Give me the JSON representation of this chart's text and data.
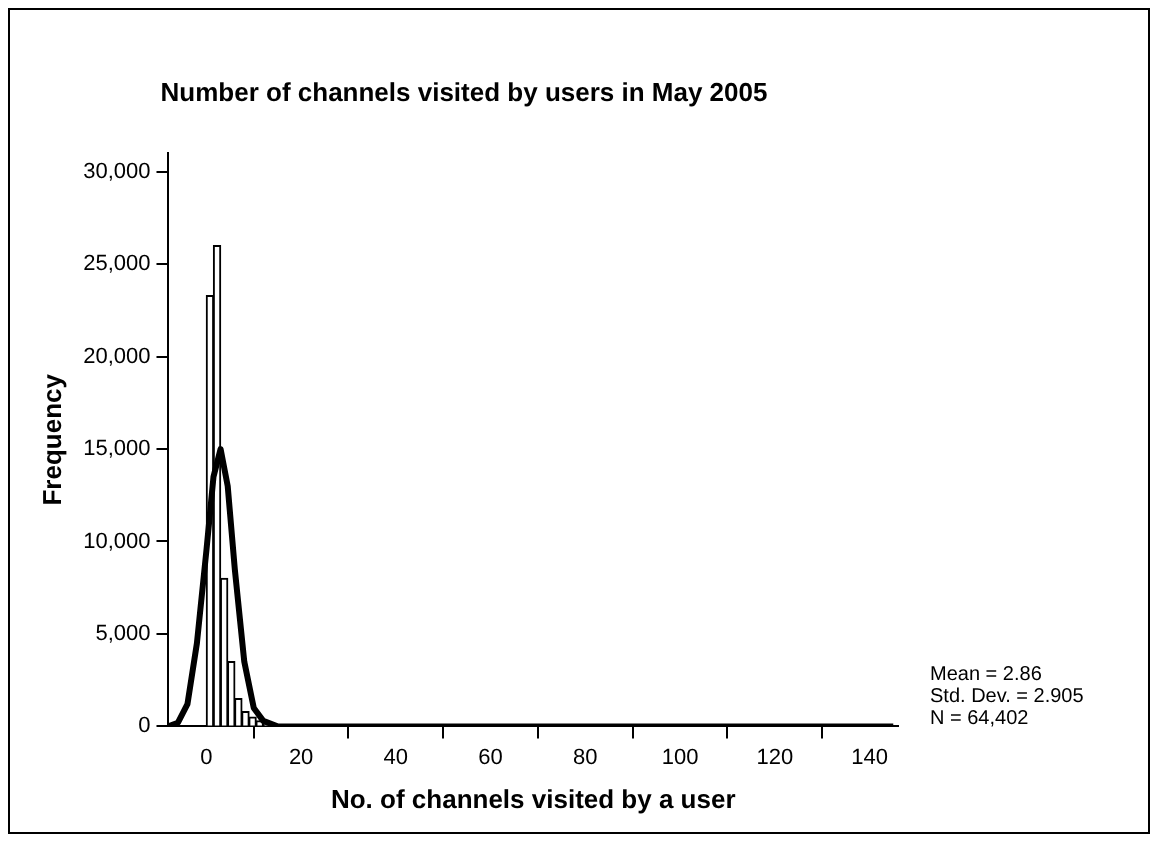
{
  "chart_data": {
    "type": "histogram",
    "title": "Number of channels visited by users in May 2005",
    "xlabel": "No. of channels visited by a user",
    "ylabel": "Frequency",
    "series": [
      {
        "color": "#ffffff",
        "bins": [
          0,
          1.5,
          3,
          4.5,
          6,
          7.5,
          9,
          10.5,
          12,
          13.5,
          15
        ],
        "values": [
          23300,
          26000,
          8000,
          3500,
          1500,
          800,
          500,
          300,
          200,
          100
        ]
      },
      {
        "type": "line",
        "color": "#000000",
        "x": [
          -8,
          -6,
          -4,
          -2,
          0,
          1.5,
          3,
          4.5,
          6,
          8,
          10,
          12,
          15,
          20,
          145
        ],
        "values": [
          0,
          200,
          1200,
          4500,
          9500,
          13500,
          15000,
          13000,
          8500,
          3500,
          1000,
          300,
          0,
          0,
          0
        ]
      }
    ],
    "xlim": [
      -8,
      146
    ],
    "xticks": [
      0,
      20,
      40,
      60,
      80,
      100,
      120,
      140
    ],
    "ylim": [
      0,
      31000
    ],
    "yticks": [
      0,
      {
        "value": 5000,
        "label": "5,000"
      },
      {
        "value": 10000,
        "label": "10,000"
      },
      {
        "value": 15000,
        "label": "15,000"
      },
      {
        "value": 20000,
        "label": "20,000"
      },
      {
        "value": 25000,
        "label": "25,000"
      },
      {
        "value": 30000,
        "label": "30,000"
      }
    ],
    "legend": false,
    "grid": false,
    "annotations": [
      "Mean = 2.86",
      "Std. Dev. = 2.905",
      "N = 64,402"
    ]
  }
}
